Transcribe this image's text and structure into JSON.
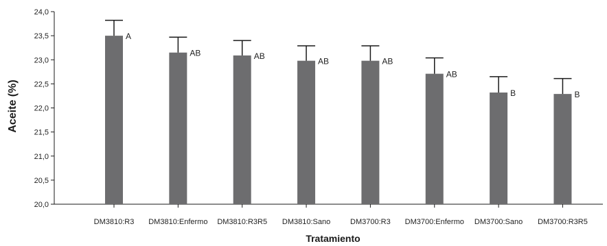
{
  "chart_data": {
    "type": "bar",
    "xlabel": "Tratamiento",
    "ylabel": "Aceite (%)",
    "ylim": [
      20.0,
      24.0
    ],
    "ytick_labels": [
      "20,0",
      "20,5",
      "21,0",
      "21,5",
      "22,0",
      "22,5",
      "23,0",
      "23,5",
      "24,0"
    ],
    "categories": [
      "DM3810:R3",
      "DM3810:Enfermo",
      "DM3810:R3R5",
      "DM3810:Sano",
      "DM3700:R3",
      "DM3700:Enfermo",
      "DM3700:Sano",
      "DM3700:R3R5"
    ],
    "values": [
      23.5,
      23.15,
      23.09,
      22.98,
      22.98,
      22.71,
      22.32,
      22.29
    ],
    "error_upper": [
      23.82,
      23.47,
      23.4,
      23.29,
      23.29,
      23.04,
      22.65,
      22.61
    ],
    "letters": [
      "A",
      "AB",
      "AB",
      "AB",
      "AB",
      "AB",
      "B",
      "B"
    ],
    "grid": false,
    "colors": {
      "bar": "#6d6d6f",
      "axis": "#1a1a1a",
      "error": "#1a1a1a"
    }
  }
}
